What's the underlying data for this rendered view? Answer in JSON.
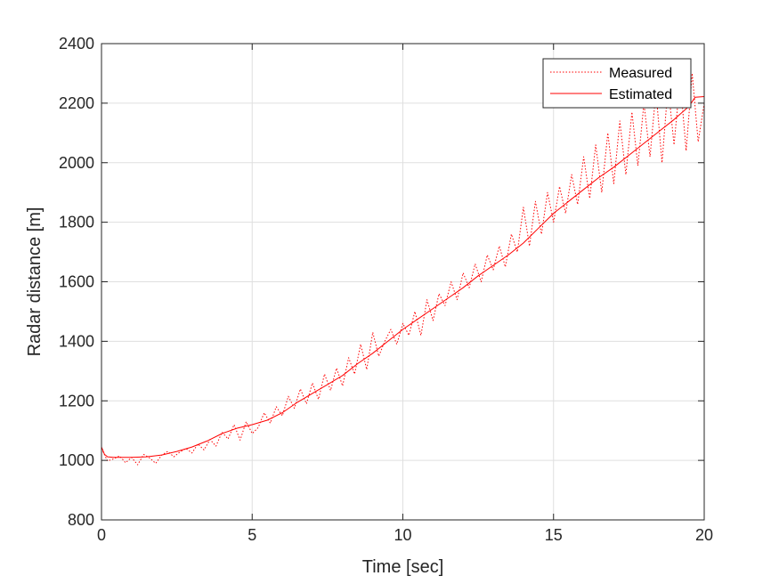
{
  "chart_data": {
    "type": "line",
    "title": "",
    "xlabel": "Time [sec]",
    "ylabel": "Radar distance [m]",
    "xlim": [
      0,
      20
    ],
    "ylim": [
      800,
      2400
    ],
    "xticks": [
      0,
      5,
      10,
      15,
      20
    ],
    "yticks": [
      800,
      1000,
      1200,
      1400,
      1600,
      1800,
      2000,
      2200,
      2400
    ],
    "grid": true,
    "legend_position": "top-right",
    "series": [
      {
        "name": "Measured",
        "color": "#ff0000",
        "style": "dotted",
        "x": [
          0,
          0.2,
          0.4,
          0.6,
          0.8,
          1.0,
          1.2,
          1.4,
          1.6,
          1.8,
          2.0,
          2.2,
          2.4,
          2.6,
          2.8,
          3.0,
          3.2,
          3.4,
          3.6,
          3.8,
          4.0,
          4.2,
          4.4,
          4.6,
          4.8,
          5.0,
          5.2,
          5.4,
          5.6,
          5.8,
          6.0,
          6.2,
          6.4,
          6.6,
          6.8,
          7.0,
          7.2,
          7.4,
          7.6,
          7.8,
          8.0,
          8.2,
          8.4,
          8.6,
          8.8,
          9.0,
          9.2,
          9.4,
          9.6,
          9.8,
          10.0,
          10.2,
          10.4,
          10.6,
          10.8,
          11.0,
          11.2,
          11.4,
          11.6,
          11.8,
          12.0,
          12.2,
          12.4,
          12.6,
          12.8,
          13.0,
          13.2,
          13.4,
          13.6,
          13.8,
          14.0,
          14.2,
          14.4,
          14.6,
          14.8,
          15.0,
          15.2,
          15.4,
          15.6,
          15.8,
          16.0,
          16.2,
          16.4,
          16.6,
          16.8,
          17.0,
          17.2,
          17.4,
          17.6,
          17.8,
          18.0,
          18.2,
          18.4,
          18.6,
          18.8,
          19.0,
          19.2,
          19.4,
          19.6,
          19.8,
          20.0
        ],
        "y": [
          1040,
          998,
          1005,
          1015,
          992,
          1010,
          985,
          1020,
          1008,
          990,
          1018,
          1030,
          1012,
          1028,
          1040,
          1025,
          1055,
          1035,
          1070,
          1048,
          1095,
          1072,
          1120,
          1068,
          1130,
          1090,
          1110,
          1160,
          1125,
          1180,
          1150,
          1215,
          1175,
          1240,
          1190,
          1260,
          1205,
          1290,
          1235,
          1310,
          1250,
          1345,
          1290,
          1390,
          1305,
          1430,
          1350,
          1400,
          1440,
          1390,
          1460,
          1420,
          1500,
          1420,
          1540,
          1470,
          1560,
          1520,
          1600,
          1540,
          1630,
          1580,
          1660,
          1600,
          1690,
          1640,
          1720,
          1650,
          1760,
          1700,
          1850,
          1720,
          1870,
          1760,
          1900,
          1800,
          1920,
          1830,
          1960,
          1860,
          2020,
          1880,
          2060,
          1900,
          2100,
          1930,
          2140,
          1960,
          2170,
          1990,
          2200,
          2020,
          2240,
          2000,
          2260,
          2060,
          2280,
          2040,
          2300,
          2070,
          2200
        ]
      },
      {
        "name": "Estimated",
        "color": "#ff0000",
        "style": "solid",
        "x": [
          0,
          0.1,
          0.2,
          0.4,
          0.6,
          1.0,
          1.5,
          2.0,
          2.5,
          3.0,
          3.5,
          4.0,
          4.5,
          5.0,
          5.5,
          6.0,
          6.5,
          7.0,
          7.5,
          8.0,
          8.5,
          9.0,
          9.5,
          10.0,
          10.5,
          11.0,
          11.5,
          12.0,
          12.5,
          13.0,
          13.5,
          14.0,
          14.5,
          15.0,
          15.5,
          16.0,
          16.5,
          17.0,
          17.5,
          18.0,
          18.5,
          19.0,
          19.5,
          19.7,
          20.0
        ],
        "y": [
          1045,
          1020,
          1012,
          1010,
          1010,
          1010,
          1012,
          1018,
          1030,
          1045,
          1065,
          1090,
          1108,
          1120,
          1135,
          1160,
          1195,
          1225,
          1255,
          1285,
          1325,
          1360,
          1400,
          1440,
          1475,
          1510,
          1545,
          1580,
          1620,
          1655,
          1690,
          1730,
          1780,
          1830,
          1870,
          1910,
          1950,
          1985,
          2025,
          2065,
          2105,
          2145,
          2190,
          2220,
          2222
        ]
      }
    ]
  }
}
